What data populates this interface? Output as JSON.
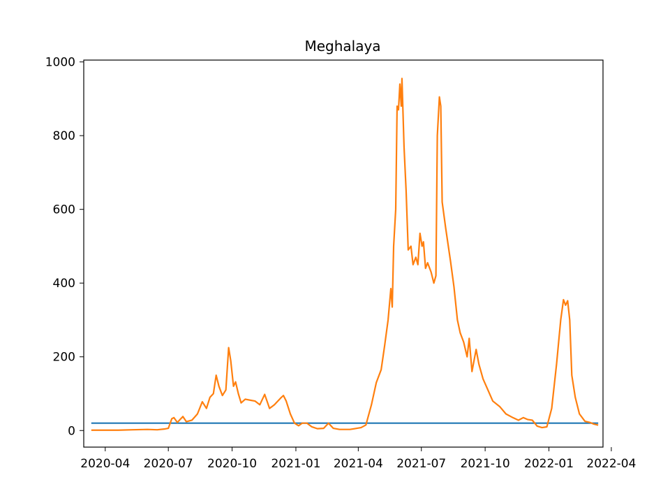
{
  "chart_data": {
    "type": "line",
    "title": "Meghalaya",
    "xlabel": "",
    "ylabel": "",
    "xlim": [
      "2020-03-01",
      "2022-03-20"
    ],
    "ylim": [
      -45,
      1005
    ],
    "grid": false,
    "legend": "none",
    "x_ticks": [
      {
        "date": "2020-04-01",
        "label": "2020-04"
      },
      {
        "date": "2020-07-01",
        "label": "2020-07"
      },
      {
        "date": "2020-10-01",
        "label": "2020-10"
      },
      {
        "date": "2021-01-01",
        "label": "2021-01"
      },
      {
        "date": "2021-04-01",
        "label": "2021-04"
      },
      {
        "date": "2021-07-01",
        "label": "2021-07"
      },
      {
        "date": "2021-10-01",
        "label": "2021-10"
      },
      {
        "date": "2022-01-01",
        "label": "2022-01"
      },
      {
        "date": "2022-04-01",
        "label": "2022-04"
      }
    ],
    "y_ticks": [
      0,
      200,
      400,
      600,
      800,
      1000
    ],
    "series": [
      {
        "color": "#1f77b4",
        "points": [
          [
            "2020-03-13",
            20
          ],
          [
            "2022-03-12",
            20
          ]
        ]
      },
      {
        "color": "#ff7f0e",
        "points": [
          [
            "2020-03-13",
            1
          ],
          [
            "2020-04-01",
            1
          ],
          [
            "2020-04-20",
            1
          ],
          [
            "2020-05-10",
            2
          ],
          [
            "2020-06-01",
            3
          ],
          [
            "2020-06-15",
            2
          ],
          [
            "2020-06-25",
            4
          ],
          [
            "2020-07-01",
            6
          ],
          [
            "2020-07-06",
            32
          ],
          [
            "2020-07-09",
            35
          ],
          [
            "2020-07-14",
            22
          ],
          [
            "2020-07-22",
            38
          ],
          [
            "2020-07-27",
            24
          ],
          [
            "2020-08-04",
            28
          ],
          [
            "2020-08-12",
            45
          ],
          [
            "2020-08-19",
            78
          ],
          [
            "2020-08-25",
            60
          ],
          [
            "2020-08-30",
            90
          ],
          [
            "2020-09-04",
            100
          ],
          [
            "2020-09-08",
            150
          ],
          [
            "2020-09-12",
            120
          ],
          [
            "2020-09-17",
            95
          ],
          [
            "2020-09-22",
            110
          ],
          [
            "2020-09-26",
            225
          ],
          [
            "2020-09-29",
            190
          ],
          [
            "2020-10-03",
            120
          ],
          [
            "2020-10-06",
            132
          ],
          [
            "2020-10-10",
            100
          ],
          [
            "2020-10-14",
            75
          ],
          [
            "2020-10-20",
            85
          ],
          [
            "2020-10-28",
            82
          ],
          [
            "2020-11-03",
            80
          ],
          [
            "2020-11-10",
            70
          ],
          [
            "2020-11-17",
            98
          ],
          [
            "2020-11-24",
            60
          ],
          [
            "2020-12-01",
            70
          ],
          [
            "2020-12-10",
            88
          ],
          [
            "2020-12-14",
            95
          ],
          [
            "2020-12-18",
            80
          ],
          [
            "2020-12-24",
            45
          ],
          [
            "2020-12-30",
            20
          ],
          [
            "2021-01-05",
            13
          ],
          [
            "2021-01-10",
            20
          ],
          [
            "2021-01-17",
            20
          ],
          [
            "2021-01-24",
            10
          ],
          [
            "2021-02-01",
            5
          ],
          [
            "2021-02-10",
            6
          ],
          [
            "2021-02-17",
            20
          ],
          [
            "2021-02-24",
            6
          ],
          [
            "2021-03-05",
            3
          ],
          [
            "2021-03-20",
            3
          ],
          [
            "2021-03-30",
            6
          ],
          [
            "2021-04-05",
            8
          ],
          [
            "2021-04-12",
            15
          ],
          [
            "2021-04-20",
            70
          ],
          [
            "2021-04-27",
            130
          ],
          [
            "2021-05-04",
            165
          ],
          [
            "2021-05-09",
            230
          ],
          [
            "2021-05-14",
            300
          ],
          [
            "2021-05-18",
            385
          ],
          [
            "2021-05-20",
            335
          ],
          [
            "2021-05-22",
            500
          ],
          [
            "2021-05-25",
            600
          ],
          [
            "2021-05-27",
            880
          ],
          [
            "2021-05-29",
            870
          ],
          [
            "2021-05-31",
            940
          ],
          [
            "2021-06-02",
            880
          ],
          [
            "2021-06-03",
            955
          ],
          [
            "2021-06-06",
            770
          ],
          [
            "2021-06-09",
            650
          ],
          [
            "2021-06-12",
            490
          ],
          [
            "2021-06-16",
            500
          ],
          [
            "2021-06-19",
            450
          ],
          [
            "2021-06-23",
            470
          ],
          [
            "2021-06-26",
            450
          ],
          [
            "2021-06-29",
            535
          ],
          [
            "2021-07-02",
            500
          ],
          [
            "2021-07-04",
            512
          ],
          [
            "2021-07-07",
            440
          ],
          [
            "2021-07-10",
            455
          ],
          [
            "2021-07-15",
            430
          ],
          [
            "2021-07-19",
            400
          ],
          [
            "2021-07-22",
            420
          ],
          [
            "2021-07-24",
            800
          ],
          [
            "2021-07-27",
            905
          ],
          [
            "2021-07-29",
            880
          ],
          [
            "2021-07-31",
            620
          ],
          [
            "2021-08-05",
            550
          ],
          [
            "2021-08-12",
            460
          ],
          [
            "2021-08-17",
            390
          ],
          [
            "2021-08-22",
            300
          ],
          [
            "2021-08-26",
            265
          ],
          [
            "2021-08-31",
            240
          ],
          [
            "2021-09-05",
            200
          ],
          [
            "2021-09-08",
            250
          ],
          [
            "2021-09-12",
            160
          ],
          [
            "2021-09-18",
            220
          ],
          [
            "2021-09-22",
            180
          ],
          [
            "2021-09-28",
            140
          ],
          [
            "2021-10-05",
            110
          ],
          [
            "2021-10-12",
            80
          ],
          [
            "2021-10-22",
            65
          ],
          [
            "2021-10-31",
            45
          ],
          [
            "2021-11-10",
            35
          ],
          [
            "2021-11-18",
            28
          ],
          [
            "2021-11-25",
            35
          ],
          [
            "2021-12-01",
            30
          ],
          [
            "2021-12-08",
            28
          ],
          [
            "2021-12-15",
            12
          ],
          [
            "2021-12-22",
            8
          ],
          [
            "2021-12-29",
            10
          ],
          [
            "2022-01-05",
            60
          ],
          [
            "2022-01-12",
            180
          ],
          [
            "2022-01-18",
            300
          ],
          [
            "2022-01-22",
            355
          ],
          [
            "2022-01-25",
            340
          ],
          [
            "2022-01-28",
            352
          ],
          [
            "2022-01-31",
            300
          ],
          [
            "2022-02-03",
            150
          ],
          [
            "2022-02-08",
            90
          ],
          [
            "2022-02-14",
            45
          ],
          [
            "2022-02-22",
            25
          ],
          [
            "2022-03-01",
            22
          ],
          [
            "2022-03-06",
            18
          ],
          [
            "2022-03-12",
            15
          ]
        ]
      }
    ]
  }
}
